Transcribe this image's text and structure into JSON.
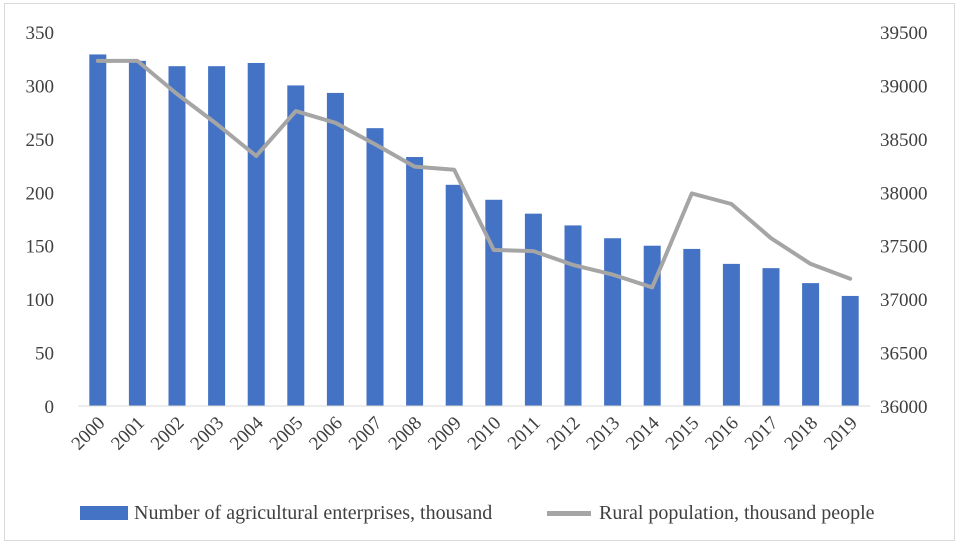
{
  "chart_data": {
    "type": "bar",
    "title": "",
    "categories": [
      "2000",
      "2001",
      "2002",
      "2003",
      "2004",
      "2005",
      "2006",
      "2007",
      "2008",
      "2009",
      "2010",
      "2011",
      "2012",
      "2013",
      "2014",
      "2015",
      "2016",
      "2017",
      "2018",
      "2019"
    ],
    "series": [
      {
        "name": "Number of agricultural enterprises, thousand",
        "type": "bar",
        "axis": "left",
        "color": "#4472c4",
        "values": [
          329,
          323,
          318,
          318,
          321,
          300,
          293,
          260,
          233,
          207,
          193,
          180,
          169,
          157,
          150,
          147,
          133,
          129,
          115,
          103
        ]
      },
      {
        "name": "Rural population, thousand people",
        "type": "line",
        "axis": "right",
        "color": "#a5a5a5",
        "values": [
          39230,
          39230,
          38920,
          38640,
          38340,
          38760,
          38650,
          38450,
          38240,
          38210,
          37460,
          37450,
          37320,
          37230,
          37110,
          37990,
          37890,
          37570,
          37330,
          37190
        ]
      }
    ],
    "y_left": {
      "min": 0,
      "max": 350,
      "ticks": [
        "0",
        "50",
        "100",
        "150",
        "200",
        "250",
        "300",
        "350"
      ]
    },
    "y_right": {
      "min": 36000,
      "max": 39500,
      "ticks": [
        "36000",
        "36500",
        "37000",
        "37500",
        "38000",
        "38500",
        "39000",
        "39500"
      ]
    },
    "grid": false,
    "legend_position": "bottom"
  }
}
